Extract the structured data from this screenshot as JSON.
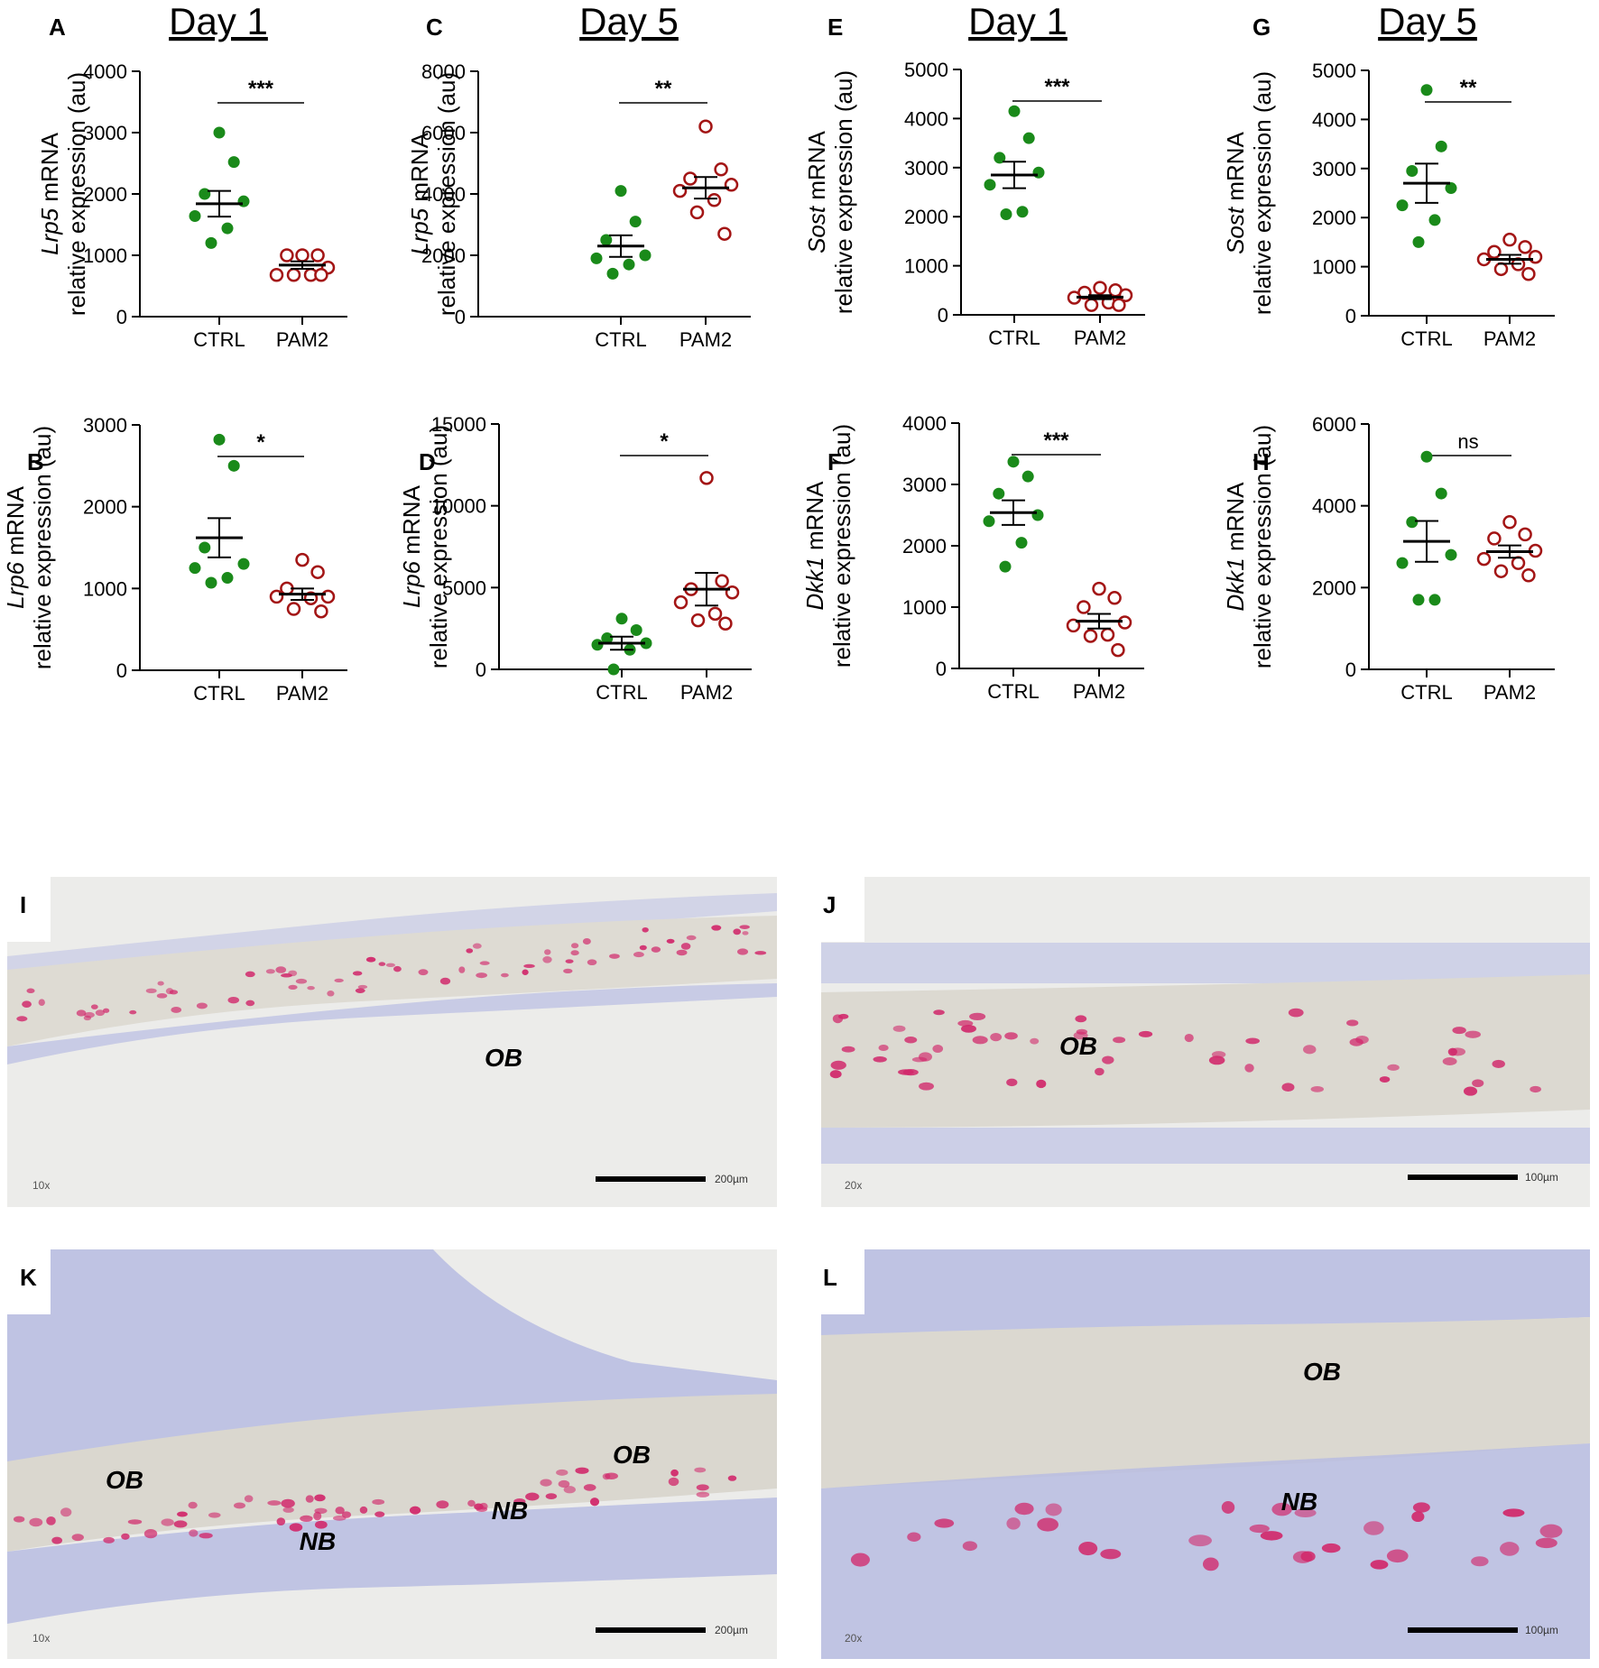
{
  "colors": {
    "ctrl": "#1a8a1a",
    "pam2": "#a31515",
    "axis": "#000000",
    "tissue_bg": "#ececea",
    "bone_matrix": "#dcdad2",
    "stroma": "#b9bde0",
    "stain": "#d1286b"
  },
  "header_titles": [
    "Day 1",
    "Day 5",
    "Day 1",
    "Day 5"
  ],
  "chart_data": [
    {
      "panel": "A",
      "type": "scatter",
      "categories": [
        "CTRL",
        "PAM2"
      ],
      "gene": "Lrp5",
      "ylabel_suffix": " mRNA",
      "ylabel_line2": "relative expression (au)",
      "ylim": [
        0,
        4000
      ],
      "yticks": [
        0,
        1000,
        2000,
        3000,
        4000
      ],
      "significance": "***",
      "series": [
        {
          "group": "CTRL",
          "values": [
            3000,
            2520,
            2000,
            1880,
            1640,
            1440,
            1200
          ],
          "mean": 1840,
          "sem": 210
        },
        {
          "group": "PAM2",
          "values": [
            1000,
            1000,
            1000,
            800,
            680,
            680,
            680,
            680
          ],
          "mean": 840,
          "sem": 60
        }
      ]
    },
    {
      "panel": "C",
      "type": "scatter",
      "categories": [
        "CTRL",
        "PAM2"
      ],
      "gene": "Lrp5",
      "ylabel_suffix": " mRNA",
      "ylabel_line2": "relative expression (au)",
      "ylim": [
        0,
        8000
      ],
      "yticks": [
        0,
        2000,
        4000,
        6000,
        8000
      ],
      "significance": "**",
      "series": [
        {
          "group": "CTRL",
          "values": [
            4100,
            3100,
            2500,
            2000,
            1900,
            1700,
            1400
          ],
          "mean": 2300,
          "sem": 350
        },
        {
          "group": "PAM2",
          "values": [
            6200,
            4800,
            4500,
            4300,
            4100,
            3800,
            3400,
            2700
          ],
          "mean": 4200,
          "sem": 350
        }
      ]
    },
    {
      "panel": "E",
      "type": "scatter",
      "categories": [
        "CTRL",
        "PAM2"
      ],
      "gene": "Sost",
      "ylabel_suffix": " mRNA",
      "ylabel_line2": "relative expression (au)",
      "ylim": [
        0,
        5000
      ],
      "yticks": [
        0,
        1000,
        2000,
        3000,
        4000,
        5000
      ],
      "significance": "***",
      "series": [
        {
          "group": "CTRL",
          "values": [
            4150,
            3600,
            3200,
            2900,
            2650,
            2100,
            2050
          ],
          "mean": 2850,
          "sem": 270
        },
        {
          "group": "PAM2",
          "values": [
            550,
            500,
            450,
            400,
            350,
            250,
            200,
            200
          ],
          "mean": 360,
          "sem": 40
        }
      ]
    },
    {
      "panel": "G",
      "type": "scatter",
      "categories": [
        "CTRL",
        "PAM2"
      ],
      "gene": "Sost",
      "ylabel_suffix": " mRNA",
      "ylabel_line2": "relative expression (au)",
      "ylim": [
        0,
        5000
      ],
      "yticks": [
        0,
        1000,
        2000,
        3000,
        4000,
        5000
      ],
      "significance": "**",
      "series": [
        {
          "group": "CTRL",
          "values": [
            4600,
            3450,
            2950,
            2600,
            2250,
            1950,
            1500
          ],
          "mean": 2700,
          "sem": 400
        },
        {
          "group": "PAM2",
          "values": [
            1550,
            1400,
            1300,
            1200,
            1150,
            1050,
            950,
            850
          ],
          "mean": 1150,
          "sem": 90
        }
      ]
    },
    {
      "panel": "B",
      "type": "scatter",
      "categories": [
        "CTRL",
        "PAM2"
      ],
      "gene": "Lrp6",
      "ylabel_suffix": " mRNA",
      "ylabel_line2": "relative expression (au)",
      "ylim": [
        0,
        3000
      ],
      "yticks": [
        0,
        1000,
        2000,
        3000
      ],
      "significance": "*",
      "series": [
        {
          "group": "CTRL",
          "values": [
            2820,
            2500,
            1500,
            1300,
            1250,
            1130,
            1070
          ],
          "mean": 1620,
          "sem": 240
        },
        {
          "group": "PAM2",
          "values": [
            1350,
            1200,
            1000,
            900,
            900,
            880,
            750,
            720
          ],
          "mean": 930,
          "sem": 70
        }
      ]
    },
    {
      "panel": "D",
      "type": "scatter",
      "categories": [
        "CTRL",
        "PAM2"
      ],
      "gene": "Lrp6",
      "ylabel_suffix": " mRNA",
      "ylabel_line2": "relative expression (au)",
      "ylim": [
        0,
        15000
      ],
      "yticks": [
        0,
        5000,
        10000,
        15000
      ],
      "significance": "*",
      "series": [
        {
          "group": "CTRL",
          "values": [
            3100,
            2400,
            1900,
            1600,
            1500,
            1200,
            0
          ],
          "mean": 1600,
          "sem": 400
        },
        {
          "group": "PAM2",
          "values": [
            11700,
            5400,
            4900,
            4700,
            4100,
            3400,
            3000,
            2800
          ],
          "mean": 4900,
          "sem": 1000
        }
      ]
    },
    {
      "panel": "F",
      "type": "scatter",
      "categories": [
        "CTRL",
        "PAM2"
      ],
      "gene": "Dkk1",
      "ylabel_suffix": " mRNA",
      "ylabel_line2": "relative expression (au)",
      "ylim": [
        0,
        4000
      ],
      "yticks": [
        0,
        1000,
        2000,
        3000,
        4000
      ],
      "significance": "***",
      "series": [
        {
          "group": "CTRL",
          "values": [
            3370,
            3130,
            2850,
            2500,
            2400,
            2050,
            1660
          ],
          "mean": 2540,
          "sem": 200
        },
        {
          "group": "PAM2",
          "values": [
            1300,
            1150,
            1000,
            750,
            700,
            550,
            530,
            300
          ],
          "mean": 770,
          "sem": 120
        }
      ]
    },
    {
      "panel": "H",
      "type": "scatter",
      "categories": [
        "CTRL",
        "PAM2"
      ],
      "gene": "Dkk1",
      "ylabel_suffix": " mRNA",
      "ylabel_line2": "relative expression (au)",
      "ylim": [
        0,
        6000
      ],
      "yticks": [
        0,
        2000,
        4000,
        6000
      ],
      "significance": "ns",
      "series": [
        {
          "group": "CTRL",
          "values": [
            5200,
            4300,
            3600,
            2800,
            2600,
            1700,
            1700
          ],
          "mean": 3130,
          "sem": 500
        },
        {
          "group": "PAM2",
          "values": [
            3600,
            3300,
            3200,
            2900,
            2700,
            2600,
            2400,
            2300
          ],
          "mean": 2880,
          "sem": 150
        }
      ]
    }
  ],
  "micrographs": [
    {
      "panel": "I",
      "magnification": "10x",
      "scale_label": "200µm",
      "labels": [
        "OB"
      ]
    },
    {
      "panel": "J",
      "magnification": "20x",
      "scale_label": "100µm",
      "labels": [
        "OB"
      ]
    },
    {
      "panel": "K",
      "magnification": "10x",
      "scale_label": "200µm",
      "labels": [
        "OB",
        "OB",
        "NB",
        "NB"
      ]
    },
    {
      "panel": "L",
      "magnification": "20x",
      "scale_label": "100µm",
      "labels": [
        "OB",
        "NB"
      ]
    }
  ]
}
